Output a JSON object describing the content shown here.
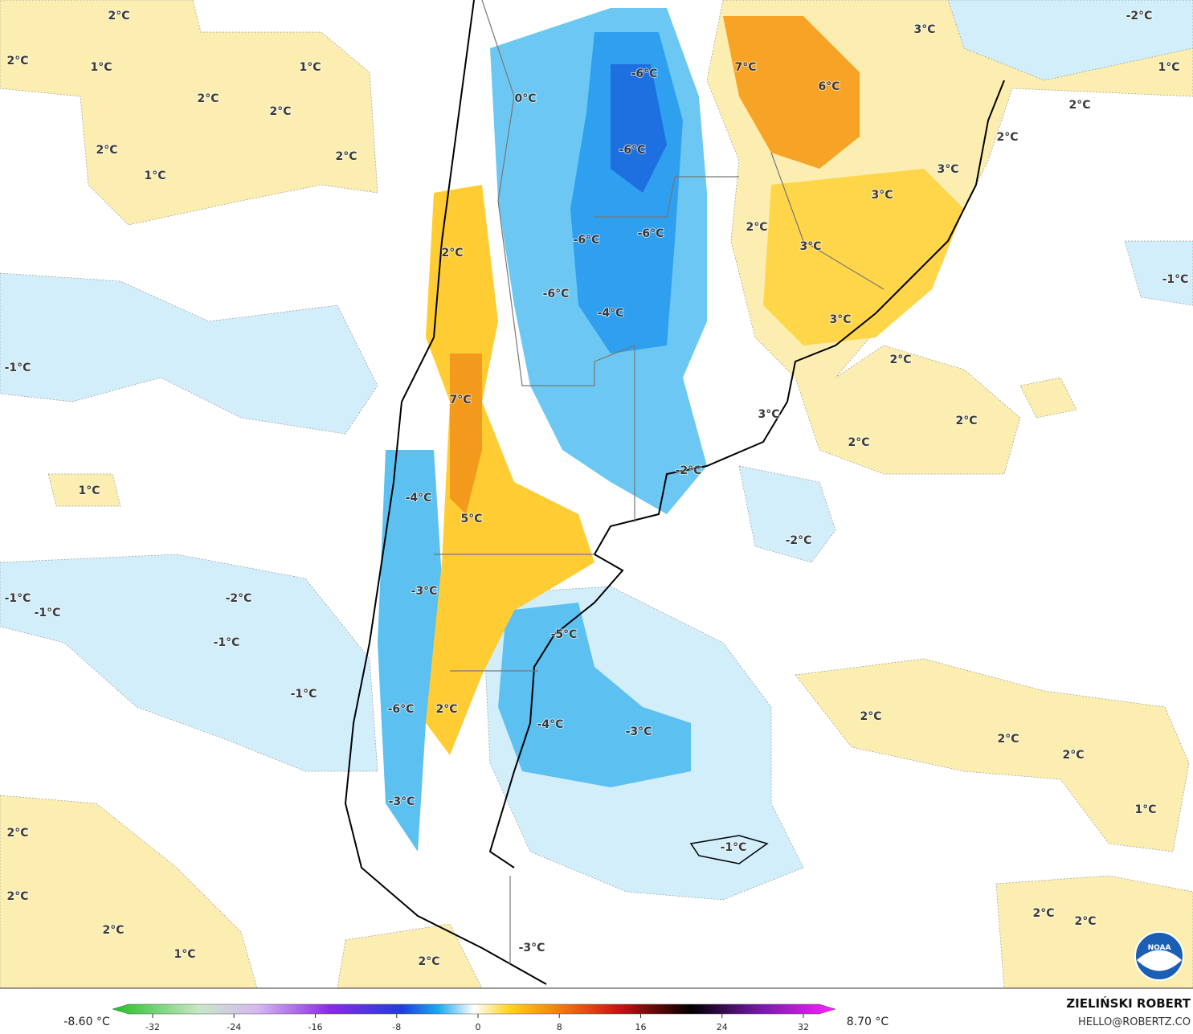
{
  "map_labels": [
    "2°C",
    "2°C",
    "1°C",
    "1°C",
    "2°C",
    "2°C",
    "2°C",
    "2°C",
    "1°C",
    "0°C",
    "-6°C",
    "-6°C",
    "7°C",
    "6°C",
    "3°C",
    "-2°C",
    "1°C",
    "2°C",
    "2°C",
    "3°C",
    "3°C",
    "2°C",
    "-6°C",
    "-6°C",
    "2°C",
    "3°C",
    "-1°C",
    "-6°C",
    "-4°C",
    "3°C",
    "-1°C",
    "2°C",
    "7°C",
    "3°C",
    "2°C",
    "2°C",
    "-2°C",
    "1°C",
    "-4°C",
    "5°C",
    "-2°C",
    "-1°C",
    "-2°C",
    "-1°C",
    "-3°C",
    "-1°C",
    "-5°C",
    "-1°C",
    "-6°C",
    "2°C",
    "2°C",
    "-4°C",
    "-3°C",
    "2°C",
    "2°C",
    "-3°C",
    "1°C",
    "2°C",
    "-1°C",
    "2°C",
    "2°C",
    "2°C",
    "2°C",
    "1°C",
    "2°C",
    "-3°C"
  ],
  "colorbar": {
    "min_label": "-8.60 °C",
    "max_label": "8.70 °C",
    "ticks": [
      -32,
      -24,
      -16,
      -8,
      0,
      8,
      16,
      24,
      32
    ]
  },
  "author": {
    "name": "ZIELIŃSKI ROBERT",
    "contact": "HELLO@ROBERTZ.CO"
  },
  "logo_text": "NOAA"
}
